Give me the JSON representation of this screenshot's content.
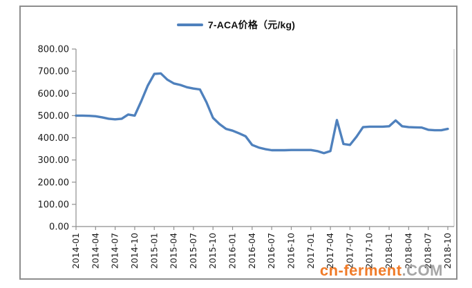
{
  "legend": {
    "label": "7-ACA价格（元/kg)"
  },
  "watermark": {
    "site": "cn-ferment",
    "tld": ".COM",
    "site_color": "#F07B28",
    "tld_color": "#A6A6A6"
  },
  "chart_data": {
    "type": "line",
    "title": "",
    "series_name": "7-ACA价格（元/kg)",
    "legend_position": "top-center",
    "grid": false,
    "line_color": "#4F81BD",
    "axis_color": "#8E8E8E",
    "plot_border_color": "#C2C2C2",
    "label_color": "#1A1A1A",
    "ylim": [
      0,
      800
    ],
    "ytick_step": 100,
    "ytick_labels": [
      "0.00",
      "100.00",
      "200.00",
      "300.00",
      "400.00",
      "500.00",
      "600.00",
      "700.00",
      "800.00"
    ],
    "xtick_every": 3,
    "x": [
      "2014-01",
      "2014-02",
      "2014-03",
      "2014-04",
      "2014-05",
      "2014-06",
      "2014-07",
      "2014-08",
      "2014-09",
      "2014-10",
      "2014-11",
      "2014-12",
      "2015-01",
      "2015-02",
      "2015-03",
      "2015-04",
      "2015-05",
      "2015-06",
      "2015-07",
      "2015-08",
      "2015-09",
      "2015-10",
      "2015-11",
      "2015-12",
      "2016-01",
      "2016-02",
      "2016-03",
      "2016-04",
      "2016-05",
      "2016-06",
      "2016-07",
      "2016-08",
      "2016-09",
      "2016-10",
      "2016-11",
      "2016-12",
      "2017-01",
      "2017-02",
      "2017-03",
      "2017-04",
      "2017-05",
      "2017-06",
      "2017-07",
      "2017-08",
      "2017-09",
      "2017-10",
      "2017-11",
      "2017-12",
      "2018-01",
      "2018-02",
      "2018-03",
      "2018-04",
      "2018-05",
      "2018-06",
      "2018-07",
      "2018-08",
      "2018-09",
      "2018-10"
    ],
    "values": [
      500,
      500,
      499,
      497,
      492,
      486,
      483,
      486,
      505,
      500,
      565,
      635,
      688,
      690,
      662,
      645,
      638,
      628,
      622,
      618,
      560,
      490,
      462,
      440,
      432,
      420,
      407,
      368,
      356,
      349,
      344,
      344,
      344,
      345,
      345,
      345,
      345,
      340,
      331,
      340,
      480,
      372,
      368,
      405,
      448,
      450,
      450,
      450,
      452,
      478,
      452,
      448,
      447,
      446,
      436,
      434,
      434,
      440
    ]
  }
}
